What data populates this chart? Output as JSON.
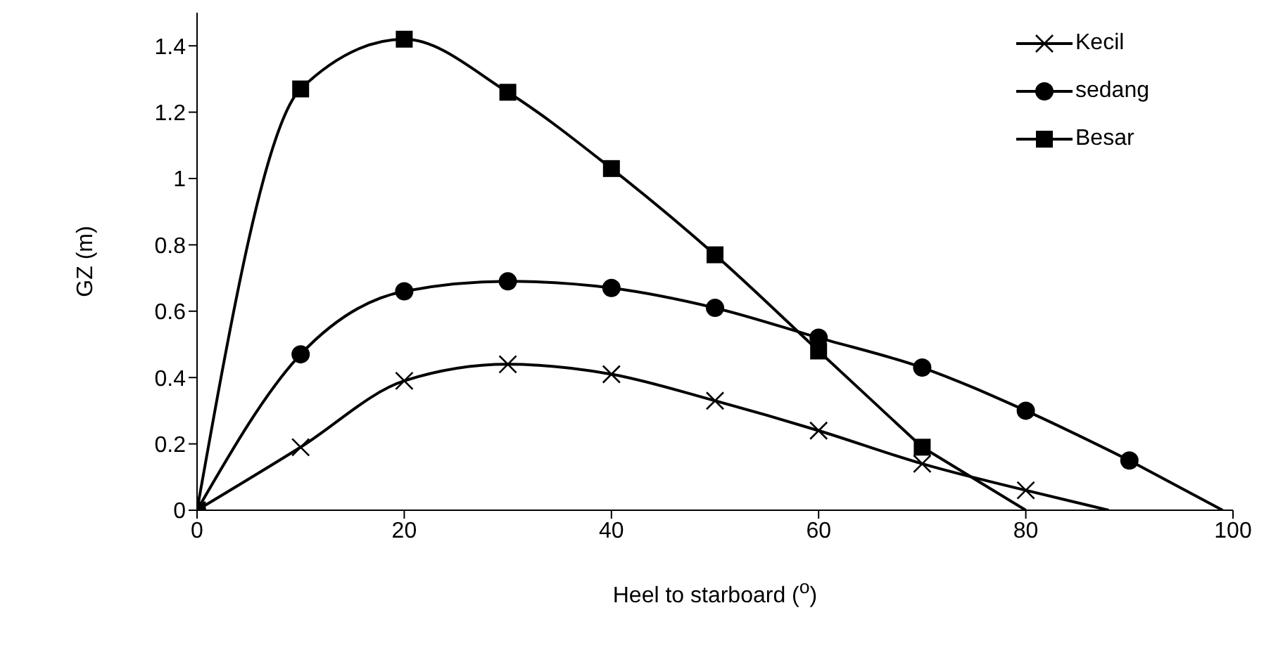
{
  "chart_data": {
    "type": "line",
    "xlabel": "Heel to starboard ($^{o}$)",
    "ylabel": "GZ (m)",
    "series": [
      {
        "name": "Kecil",
        "color": "#000000",
        "marker": "cross",
        "x": [
          0,
          10,
          20,
          30,
          40,
          50,
          60,
          70,
          80
        ],
        "values": [
          0,
          0.19,
          0.39,
          0.44,
          0.41,
          0.33,
          0.24,
          0.14,
          0.06
        ]
      },
      {
        "name": "sedang",
        "color": "#000000",
        "marker": "circle",
        "x": [
          0,
          10,
          20,
          30,
          40,
          50,
          60,
          70,
          80,
          90
        ],
        "values": [
          0,
          0.47,
          0.66,
          0.69,
          0.67,
          0.61,
          0.52,
          0.43,
          0.3,
          0.15
        ]
      },
      {
        "name": "Besar",
        "color": "#000000",
        "marker": "square",
        "x": [
          0,
          10,
          20,
          30,
          40,
          50,
          60,
          70
        ],
        "values": [
          0,
          1.27,
          1.42,
          1.26,
          1.03,
          0.77,
          0.48,
          0.19
        ]
      },
      {
        "type": "line",
        "color": "#000000",
        "marker": "none",
        "x": [
          80,
          88
        ],
        "values": [
          0.06,
          0
        ]
      },
      {
        "type": "line",
        "color": "#000000",
        "marker": "none",
        "x": [
          90,
          99
        ],
        "values": [
          0.15,
          0
        ]
      },
      {
        "type": "line",
        "color": "#000000",
        "marker": "none",
        "x": [
          70,
          80
        ],
        "values": [
          0.19,
          0
        ]
      }
    ],
    "xlim": [
      0,
      100
    ],
    "xticks": [
      0,
      20,
      40,
      60,
      80,
      100
    ],
    "ylim": [
      0,
      1.5
    ],
    "yticks": [
      0,
      0.2,
      0.4,
      0.6,
      0.8,
      1,
      1.2,
      1.4
    ],
    "grid": false,
    "legend": "top right",
    "line_style": "solid"
  }
}
